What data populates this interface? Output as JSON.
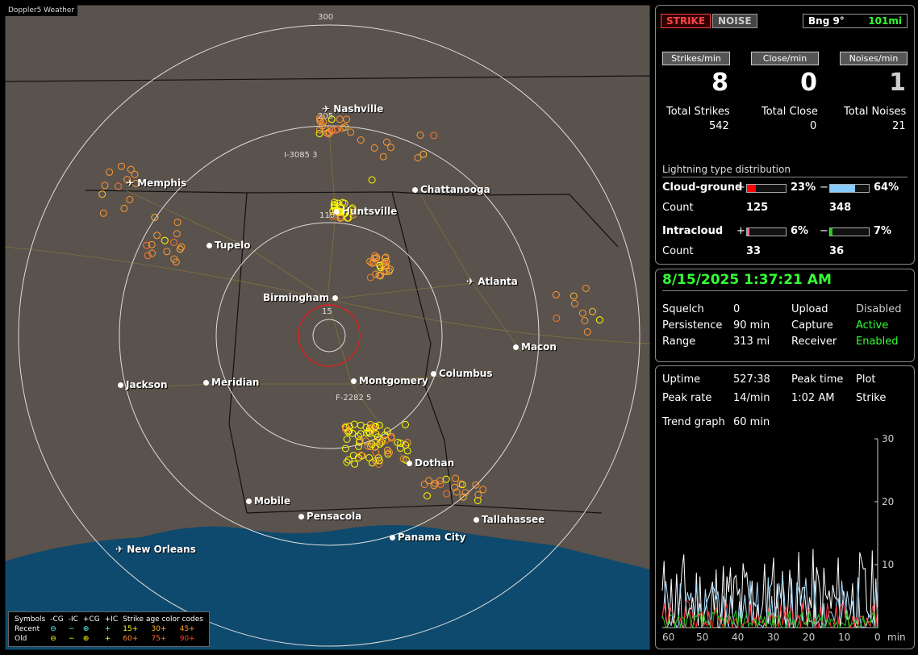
{
  "map": {
    "title": "Doppler5 Weather",
    "rings": [
      "300",
      "205",
      "110",
      "15"
    ],
    "storm_labels": [
      "I-3085 3",
      "F-2282 5"
    ],
    "cities": [
      "Nashville",
      "Memphis",
      "Chattanooga",
      "Huntsville",
      "Tupelo",
      "Atlanta",
      "Birmingham",
      "Macon",
      "Jackson",
      "Meridian",
      "Montgomery",
      "Columbus",
      "Dothan",
      "Mobile",
      "Pensacola",
      "Tallahassee",
      "Panama City",
      "New Orleans"
    ]
  },
  "legend": {
    "headers": [
      "Symbols",
      "-CG",
      "-IC",
      "+CG",
      "+IC",
      "Strike age color codes"
    ],
    "recent": {
      "label": "Recent",
      "ages": [
        "15+",
        "30+",
        "45+"
      ]
    },
    "old": {
      "label": "Old",
      "ages": [
        "60+",
        "75+",
        "90+"
      ]
    }
  },
  "stats": {
    "strike_btn": "STRIKE",
    "noise_btn": "NOISE",
    "bearing": "Bng 9°",
    "bearing_range": "101mi",
    "strikes_min_label": "Strikes/min",
    "close_min_label": "Close/min",
    "noises_min_label": "Noises/min",
    "strikes_min": "8",
    "close_min": "0",
    "noises_min": "1",
    "total_strikes_label": "Total Strikes",
    "total_close_label": "Total Close",
    "total_noises_label": "Total Noises",
    "total_strikes": "542",
    "total_close": "0",
    "total_noises": "21",
    "dist_title": "Lightning type distribution",
    "cg_label": "Cloud-ground",
    "ic_label": "Intracloud",
    "count_label": "Count",
    "plus": "+",
    "minus": "−",
    "cg_pos_pct": "23%",
    "cg_neg_pct": "64%",
    "ic_pos_pct": "6%",
    "ic_neg_pct": "7%",
    "cg_pos_count": "125",
    "cg_neg_count": "348",
    "ic_pos_count": "33",
    "ic_neg_count": "36",
    "bar_levels": {
      "cg_pos": 0.23,
      "cg_neg": 0.64,
      "ic_pos": 0.06,
      "ic_neg": 0.07
    },
    "colors": {
      "cg_pos": "#ff0000",
      "cg_neg": "#88ccff",
      "ic_pos": "#ff66aa",
      "ic_neg": "#22cc22"
    }
  },
  "status": {
    "datetime": "8/15/2025 1:37:21 AM",
    "squelch_label": "Squelch",
    "squelch": "0",
    "persistence_label": "Persistence",
    "persistence": "90 min",
    "range_label": "Range",
    "range": "313 mi",
    "upload_label": "Upload",
    "upload": "Disabled",
    "capture_label": "Capture",
    "capture": "Active",
    "receiver_label": "Receiver",
    "receiver": "Enabled"
  },
  "trend": {
    "uptime_label": "Uptime",
    "uptime": "527:38",
    "peak_time_label": "Peak time",
    "peak_time": "1:02 AM",
    "plot_label": "Plot",
    "plot": "Strike",
    "peak_rate_label": "Peak rate",
    "peak_rate": "14/min",
    "trend_label": "Trend graph",
    "trend_value": "60 min",
    "y_ticks": [
      "30",
      "20",
      "10"
    ],
    "x_ticks": [
      "60",
      "50",
      "40",
      "30",
      "20",
      "10",
      "0"
    ],
    "x_unit": "min"
  }
}
